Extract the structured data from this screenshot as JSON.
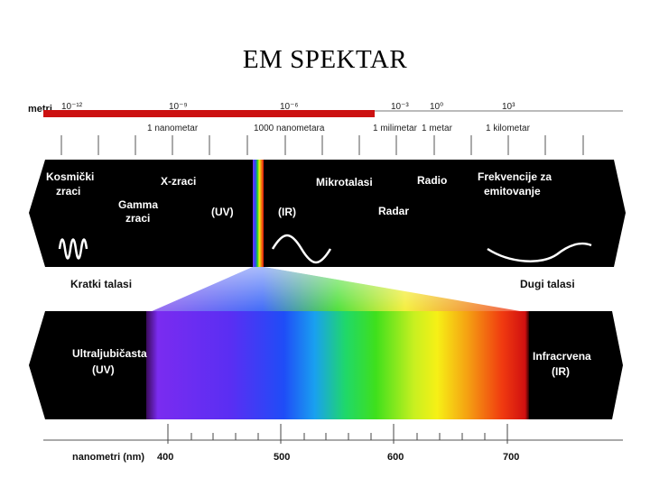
{
  "title": "EM  SPEKTAR",
  "top_scale": {
    "unit_label": "metri",
    "powers": [
      "10⁻¹²",
      "10⁻⁹",
      "10⁻⁶",
      "10⁻³",
      "10⁰",
      "10³"
    ],
    "named_lengths": [
      "1 nanometar",
      "1000 nanometara",
      "1 milimetar",
      "1 metar",
      "1 kilometar"
    ]
  },
  "band_labels": {
    "cosmic": [
      "Kosmički",
      "zraci"
    ],
    "gamma": [
      "Gamma",
      "zraci"
    ],
    "xray": "X-zraci",
    "uv": "(UV)",
    "ir": "(IR)",
    "microwave": "Mikrotalasi",
    "radar": "Radar",
    "radio": "Radio",
    "broadcast": [
      "Frekvencije za",
      "emitovanje"
    ]
  },
  "wave_labels": {
    "short": "Kratki talasi",
    "long": "Dugi talasi"
  },
  "visible_band": {
    "left": [
      "Ultraljubičasta",
      "(UV)"
    ],
    "right": [
      "Infracrvena",
      "(IR)"
    ]
  },
  "bottom_scale": {
    "unit_label": "nanometri (nm)",
    "ticks": [
      "400",
      "500",
      "600",
      "700"
    ]
  },
  "colors": {
    "red_bar": "#cc1111",
    "band_black": "#000000",
    "violet": "#7a2cf0",
    "blue": "#1f4df7",
    "green": "#2fd61c",
    "yellow": "#f6f016",
    "orange": "#f07d10",
    "red": "#e01010"
  }
}
